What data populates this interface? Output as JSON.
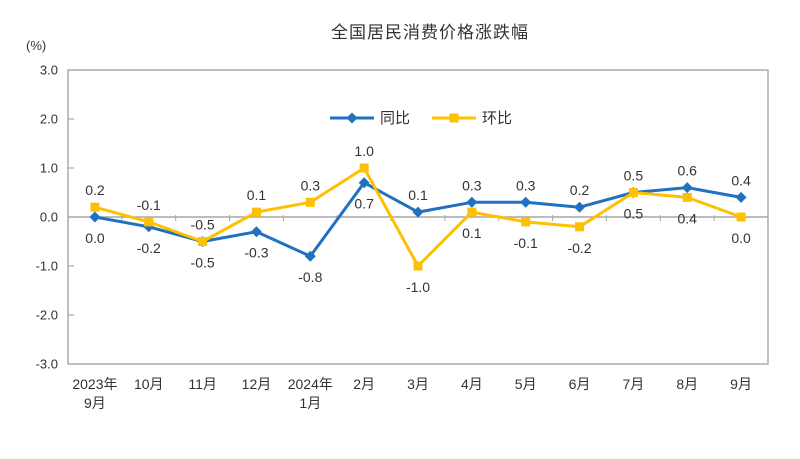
{
  "chart_data": {
    "type": "line",
    "title": "全国居民消费价格涨跌幅",
    "unit_label": "(%)",
    "categories": [
      [
        "2023年",
        "9月"
      ],
      [
        "10月"
      ],
      [
        "11月"
      ],
      [
        "12月"
      ],
      [
        "2024年",
        "1月"
      ],
      [
        "2月"
      ],
      [
        "3月"
      ],
      [
        "4月"
      ],
      [
        "5月"
      ],
      [
        "6月"
      ],
      [
        "7月"
      ],
      [
        "8月"
      ],
      [
        "9月"
      ]
    ],
    "series": [
      {
        "id": "yoy",
        "name": "同比",
        "color": "#2171C1",
        "marker": "diamond",
        "values": [
          0.0,
          -0.2,
          -0.5,
          -0.3,
          -0.8,
          0.7,
          0.1,
          0.3,
          0.3,
          0.2,
          0.5,
          0.6,
          0.4
        ],
        "label_side": [
          "below",
          "below",
          "below",
          "below",
          "below",
          "below",
          "above",
          "above",
          "above",
          "above",
          "above",
          "above",
          "above"
        ]
      },
      {
        "id": "mom",
        "name": "环比",
        "color": "#FFC000",
        "marker": "square",
        "values": [
          0.2,
          -0.1,
          -0.5,
          0.1,
          0.3,
          1.0,
          -1.0,
          0.1,
          -0.1,
          -0.2,
          0.5,
          0.4,
          0.0
        ],
        "label_side": [
          "above",
          "above",
          "above",
          "above",
          "above",
          "above",
          "below",
          "below",
          "below",
          "below",
          "below",
          "below",
          "below"
        ]
      }
    ],
    "y_axis": {
      "min": -3.0,
      "max": 3.0,
      "step": 1.0,
      "tick_labels": [
        "3.0",
        "2.0",
        "1.0",
        "0.0",
        "-1.0",
        "-2.0",
        "-3.0"
      ]
    },
    "legend": {
      "position": "top-center",
      "entries": [
        "同比",
        "环比"
      ]
    },
    "grid": "zero-line-only",
    "axis_color": "#A6A6A6",
    "text_color": "#333333"
  }
}
